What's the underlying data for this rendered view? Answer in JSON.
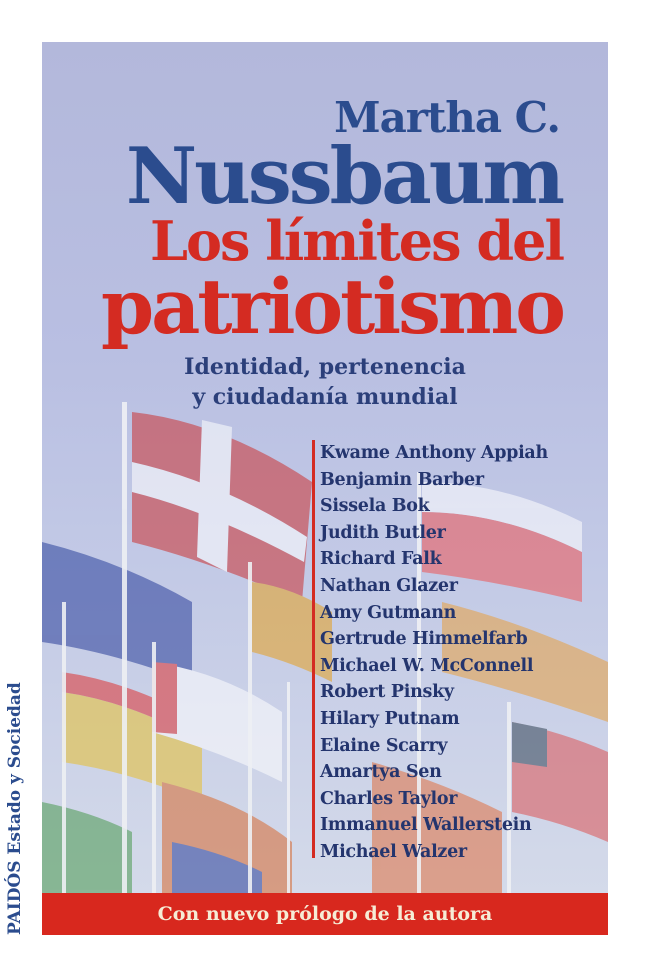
{
  "cover": {
    "author_first": "Martha C.",
    "author_last": "Nussbaum",
    "title_line1": "Los límites del",
    "title_line2": "patriotismo",
    "subtitle_line1": "Identidad, pertenencia",
    "subtitle_line2": "y ciudadanía mundial",
    "contributors": [
      "Kwame Anthony Appiah",
      "Benjamin Barber",
      "Sissela Bok",
      "Judith Butler",
      "Richard Falk",
      "Nathan Glazer",
      "Amy Gutmann",
      "Gertrude Himmelfarb",
      "Michael W. McConnell",
      "Robert Pinsky",
      "Hilary Putnam",
      "Elaine Scarry",
      "Amartya Sen",
      "Charles Taylor",
      "Immanuel Wallerstein",
      "Michael Walzer"
    ],
    "banner": "Con nuevo prólogo de la autora",
    "spine": "PAIDÓS Estado y Sociedad"
  },
  "colors": {
    "author": "#2b4c8e",
    "title": "#d42b22",
    "banner": "#d8281e",
    "background": "#b3b8db"
  }
}
